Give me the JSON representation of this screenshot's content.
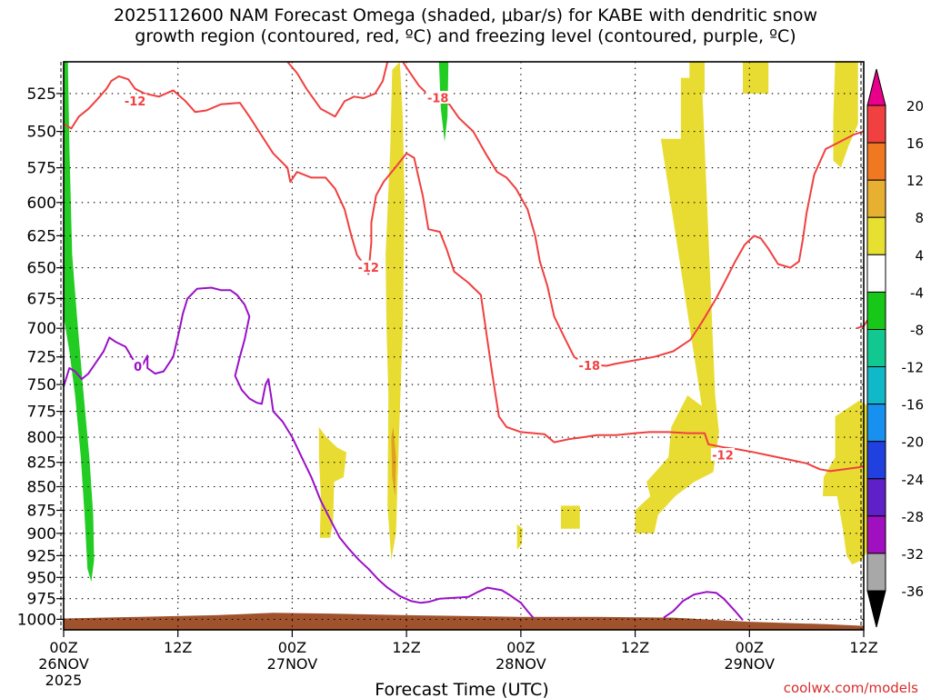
{
  "chart_data": {
    "type": "heatmap",
    "title_lines": [
      "2025112600 NAM Forecast Omega (shaded, μbar/s) for KABE with dendritic snow",
      "growth region (contoured, red, ºC) and freezing level (contoured, purple, ºC)"
    ],
    "xlabel": "Forecast Time (UTC)",
    "ylabel": "",
    "y_axis": {
      "ticks": [
        525,
        550,
        575,
        600,
        625,
        650,
        675,
        700,
        725,
        750,
        775,
        800,
        825,
        850,
        875,
        900,
        925,
        950,
        975,
        1000
      ],
      "range_hpa": [
        505,
        1013
      ],
      "scale": "log-pressure"
    },
    "x_axis": {
      "range_hours": [
        0,
        84
      ],
      "ticks": [
        {
          "hour": 0,
          "l1": "00Z",
          "l2": "26NOV",
          "l3": "2025"
        },
        {
          "hour": 12,
          "l1": "12Z",
          "l2": "",
          "l3": ""
        },
        {
          "hour": 24,
          "l1": "00Z",
          "l2": "27NOV",
          "l3": ""
        },
        {
          "hour": 36,
          "l1": "12Z",
          "l2": "",
          "l3": ""
        },
        {
          "hour": 48,
          "l1": "00Z",
          "l2": "28NOV",
          "l3": ""
        },
        {
          "hour": 60,
          "l1": "12Z",
          "l2": "",
          "l3": ""
        },
        {
          "hour": 72,
          "l1": "00Z",
          "l2": "29NOV",
          "l3": ""
        },
        {
          "hour": 84,
          "l1": "12Z",
          "l2": "",
          "l3": ""
        }
      ]
    },
    "grid": true,
    "colorbar": {
      "labels": [
        "20",
        "16",
        "12",
        "8",
        "4",
        "-4",
        "-8",
        "-12",
        "-16",
        "-20",
        "-24",
        "-28",
        "-32",
        "-36"
      ],
      "colors": [
        "#e8008a",
        "#f04040",
        "#f07820",
        "#e8b030",
        "#e8e030",
        "#ffffff",
        "#18c818",
        "#10c890",
        "#10b8c8",
        "#1890f0",
        "#2040e0",
        "#6020c8",
        "#a010c0",
        "#a8a8a8",
        "#000000"
      ]
    },
    "shading_colors": {
      "positive_omega": "#e8dc32",
      "stronger_positive": "#e0a020",
      "negative_omega": "#22cc22",
      "ground": "#a0522d"
    },
    "contours": {
      "dgz_color": "#f04040",
      "freezing_color": "#9a10c8",
      "labels": [
        {
          "text": "-12",
          "hour": 7.5,
          "p": 530,
          "kind": "dgz"
        },
        {
          "text": "-18",
          "hour": 39.3,
          "p": 528,
          "kind": "dgz"
        },
        {
          "text": "-12",
          "hour": 32,
          "p": 650,
          "kind": "dgz"
        },
        {
          "text": "-18",
          "hour": 55.2,
          "p": 733,
          "kind": "dgz"
        },
        {
          "text": "-12",
          "hour": 69.2,
          "p": 818,
          "kind": "dgz"
        },
        {
          "text": "0",
          "hour": 7.8,
          "p": 734,
          "kind": "freezing"
        }
      ]
    }
  },
  "credit": "coolwx.com/models"
}
